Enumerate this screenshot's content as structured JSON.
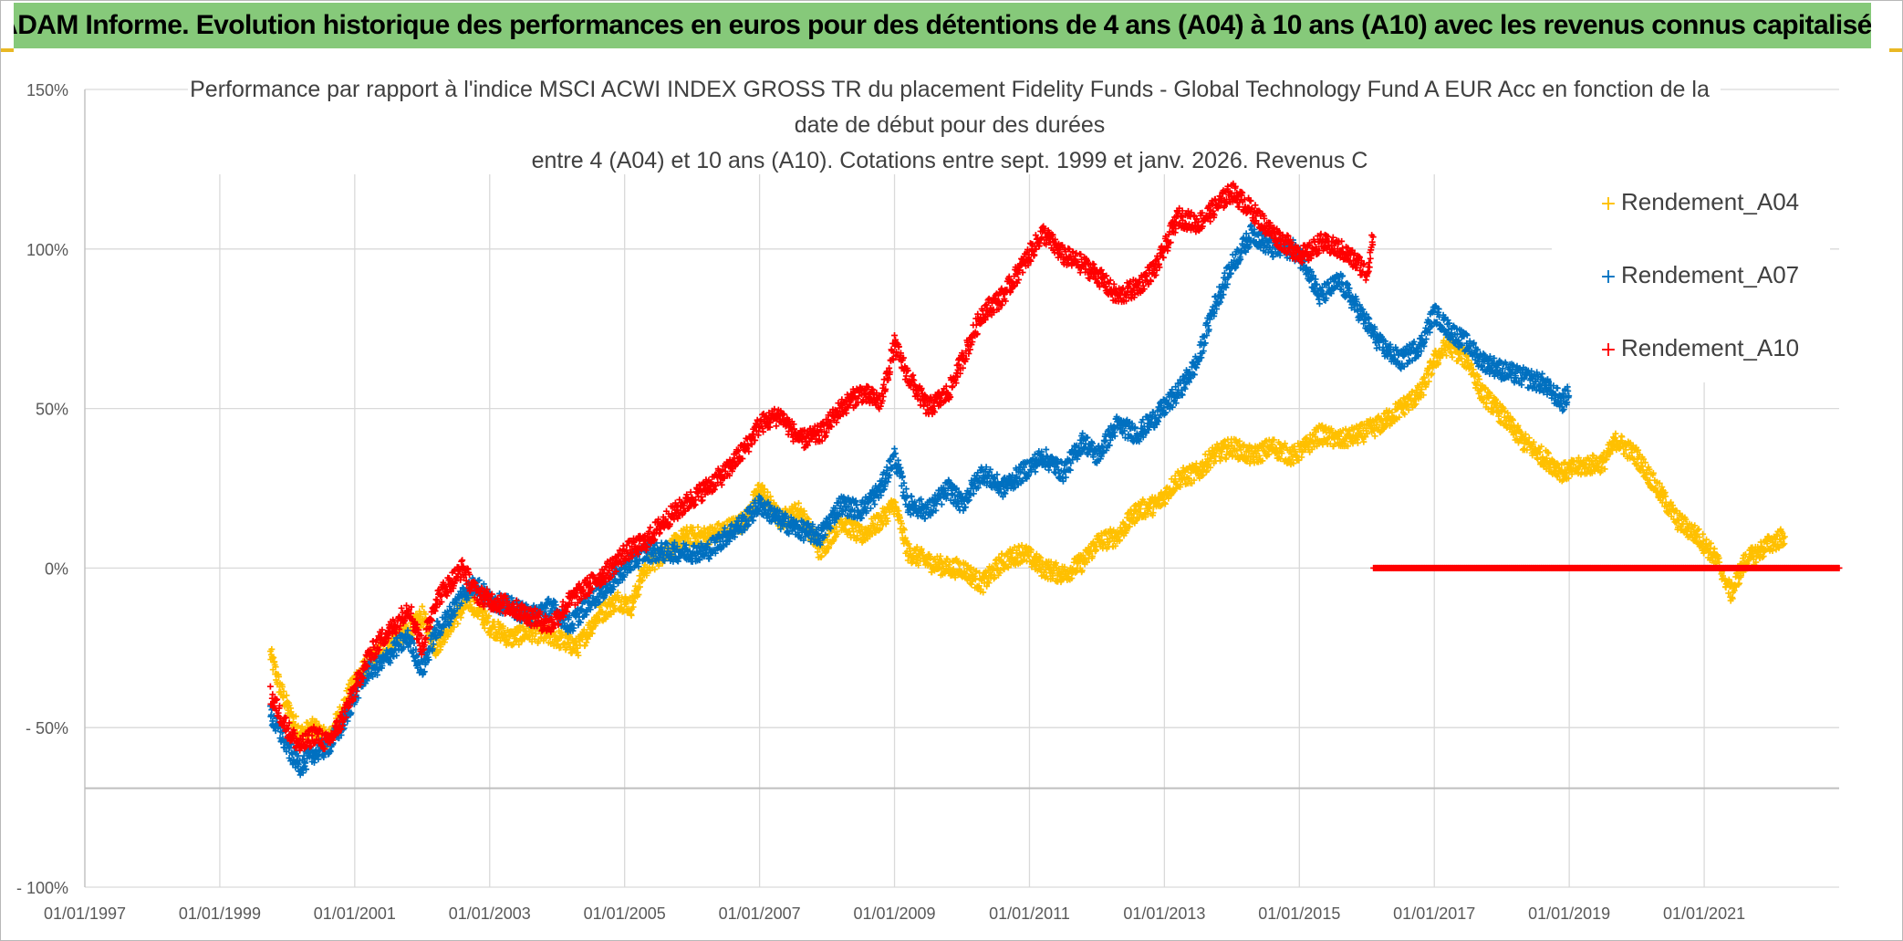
{
  "header": {
    "banner": "ADAM Informe. Evolution historique des performances en euros pour des détentions de 4 ans (A04) à 10 ans (A10) avec les revenus connus capitalisés"
  },
  "chart_data": {
    "type": "scatter",
    "title_lines": [
      "Performance par rapport à l'indice MSCI ACWI INDEX GROSS TR  du placement Fidelity Funds - Global Technology Fund A EUR Acc en fonction de la",
      "date de début pour des durées",
      "entre 4 (A04) et 10 ans (A10). Cotations entre sept. 1999 et janv. 2026. Revenus C"
    ],
    "ylim": [
      -100,
      150
    ],
    "y_ticks": [
      {
        "value": 150,
        "label": "150%"
      },
      {
        "value": 100,
        "label": "100%"
      },
      {
        "value": 50,
        "label": "50%"
      },
      {
        "value": 0,
        "label": "0%"
      },
      {
        "value": -50,
        "label": "- 50%"
      },
      {
        "value": -100,
        "label": "- 100%"
      }
    ],
    "xlim": [
      1997.0,
      2023.0
    ],
    "x_ticks": [
      {
        "value": 1997,
        "label": "01/01/1997"
      },
      {
        "value": 1999,
        "label": "01/01/1999"
      },
      {
        "value": 2001,
        "label": "01/01/2001"
      },
      {
        "value": 2003,
        "label": "01/01/2003"
      },
      {
        "value": 2005,
        "label": "01/01/2005"
      },
      {
        "value": 2007,
        "label": "01/01/2007"
      },
      {
        "value": 2009,
        "label": "01/01/2009"
      },
      {
        "value": 2011,
        "label": "01/01/2011"
      },
      {
        "value": 2013,
        "label": "01/01/2013"
      },
      {
        "value": 2015,
        "label": "01/01/2015"
      },
      {
        "value": 2017,
        "label": "01/01/2017"
      },
      {
        "value": 2019,
        "label": "01/01/2019"
      },
      {
        "value": 2021,
        "label": "01/01/2021"
      }
    ],
    "legend_position": "top-right",
    "series": [
      {
        "name": "Rendement_A04",
        "color": "#FFC000",
        "points": [
          [
            1999.75,
            -27
          ],
          [
            1999.9,
            -38
          ],
          [
            2000.05,
            -46
          ],
          [
            2000.2,
            -52
          ],
          [
            2000.4,
            -50
          ],
          [
            2000.6,
            -54
          ],
          [
            2000.8,
            -45
          ],
          [
            2001.0,
            -35
          ],
          [
            2001.2,
            -30
          ],
          [
            2001.4,
            -25
          ],
          [
            2001.6,
            -22
          ],
          [
            2001.8,
            -20
          ],
          [
            2002.0,
            -15
          ],
          [
            2002.2,
            -25
          ],
          [
            2002.4,
            -18
          ],
          [
            2002.7,
            -10
          ],
          [
            2003.0,
            -18
          ],
          [
            2003.3,
            -22
          ],
          [
            2003.6,
            -20
          ],
          [
            2004.0,
            -22
          ],
          [
            2004.3,
            -25
          ],
          [
            2004.6,
            -15
          ],
          [
            2004.9,
            -10
          ],
          [
            2005.1,
            -12
          ],
          [
            2005.3,
            0
          ],
          [
            2005.6,
            5
          ],
          [
            2005.9,
            10
          ],
          [
            2006.2,
            10
          ],
          [
            2006.5,
            12
          ],
          [
            2006.8,
            15
          ],
          [
            2007.0,
            25
          ],
          [
            2007.3,
            15
          ],
          [
            2007.6,
            18
          ],
          [
            2007.9,
            5
          ],
          [
            2008.2,
            15
          ],
          [
            2008.5,
            10
          ],
          [
            2008.8,
            15
          ],
          [
            2009.0,
            20
          ],
          [
            2009.2,
            5
          ],
          [
            2009.5,
            2
          ],
          [
            2009.8,
            0
          ],
          [
            2010.0,
            0
          ],
          [
            2010.3,
            -5
          ],
          [
            2010.6,
            2
          ],
          [
            2010.9,
            5
          ],
          [
            2011.2,
            0
          ],
          [
            2011.5,
            -2
          ],
          [
            2011.8,
            2
          ],
          [
            2012.0,
            8
          ],
          [
            2012.3,
            10
          ],
          [
            2012.6,
            18
          ],
          [
            2012.9,
            20
          ],
          [
            2013.2,
            28
          ],
          [
            2013.5,
            30
          ],
          [
            2013.7,
            35
          ],
          [
            2014.0,
            38
          ],
          [
            2014.3,
            35
          ],
          [
            2014.6,
            38
          ],
          [
            2014.9,
            35
          ],
          [
            2015.1,
            38
          ],
          [
            2015.3,
            42
          ],
          [
            2015.6,
            40
          ],
          [
            2015.9,
            42
          ],
          [
            2016.2,
            45
          ],
          [
            2016.5,
            50
          ],
          [
            2016.8,
            55
          ],
          [
            2017.0,
            65
          ],
          [
            2017.2,
            70
          ],
          [
            2017.5,
            65
          ],
          [
            2017.7,
            55
          ],
          [
            2018.0,
            48
          ],
          [
            2018.3,
            40
          ],
          [
            2018.6,
            35
          ],
          [
            2018.9,
            30
          ],
          [
            2019.2,
            32
          ],
          [
            2019.5,
            33
          ],
          [
            2019.7,
            40
          ],
          [
            2020.0,
            35
          ],
          [
            2020.3,
            25
          ],
          [
            2020.6,
            15
          ],
          [
            2020.9,
            10
          ],
          [
            2021.1,
            5
          ],
          [
            2021.25,
            0
          ],
          [
            2021.4,
            -8
          ],
          [
            2021.6,
            2
          ],
          [
            2021.8,
            5
          ],
          [
            2022.0,
            8
          ],
          [
            2022.2,
            10
          ]
        ]
      },
      {
        "name": "Rendement_A07",
        "color": "#0070C0",
        "points": [
          [
            1999.75,
            -46
          ],
          [
            1999.9,
            -52
          ],
          [
            2000.05,
            -58
          ],
          [
            2000.2,
            -62
          ],
          [
            2000.4,
            -58
          ],
          [
            2000.6,
            -56
          ],
          [
            2000.8,
            -50
          ],
          [
            2001.0,
            -40
          ],
          [
            2001.2,
            -32
          ],
          [
            2001.4,
            -30
          ],
          [
            2001.6,
            -25
          ],
          [
            2001.8,
            -22
          ],
          [
            2002.0,
            -32
          ],
          [
            2002.2,
            -20
          ],
          [
            2002.4,
            -15
          ],
          [
            2002.6,
            -8
          ],
          [
            2002.8,
            -5
          ],
          [
            2003.0,
            -10
          ],
          [
            2003.3,
            -12
          ],
          [
            2003.6,
            -15
          ],
          [
            2003.9,
            -12
          ],
          [
            2004.2,
            -18
          ],
          [
            2004.5,
            -10
          ],
          [
            2004.8,
            -5
          ],
          [
            2005.0,
            0
          ],
          [
            2005.3,
            5
          ],
          [
            2005.6,
            5
          ],
          [
            2005.9,
            5
          ],
          [
            2006.2,
            5
          ],
          [
            2006.5,
            10
          ],
          [
            2006.8,
            15
          ],
          [
            2007.0,
            20
          ],
          [
            2007.3,
            15
          ],
          [
            2007.6,
            12
          ],
          [
            2007.9,
            10
          ],
          [
            2008.2,
            20
          ],
          [
            2008.5,
            18
          ],
          [
            2008.8,
            25
          ],
          [
            2009.0,
            35
          ],
          [
            2009.2,
            20
          ],
          [
            2009.5,
            18
          ],
          [
            2009.8,
            25
          ],
          [
            2010.0,
            20
          ],
          [
            2010.3,
            30
          ],
          [
            2010.6,
            25
          ],
          [
            2010.9,
            30
          ],
          [
            2011.2,
            35
          ],
          [
            2011.5,
            30
          ],
          [
            2011.8,
            40
          ],
          [
            2012.0,
            35
          ],
          [
            2012.3,
            45
          ],
          [
            2012.6,
            42
          ],
          [
            2012.9,
            48
          ],
          [
            2013.2,
            55
          ],
          [
            2013.5,
            65
          ],
          [
            2013.7,
            80
          ],
          [
            2014.0,
            95
          ],
          [
            2014.3,
            105
          ],
          [
            2014.6,
            100
          ],
          [
            2014.9,
            100
          ],
          [
            2015.1,
            95
          ],
          [
            2015.3,
            85
          ],
          [
            2015.6,
            90
          ],
          [
            2015.9,
            80
          ],
          [
            2016.2,
            70
          ],
          [
            2016.5,
            65
          ],
          [
            2016.8,
            70
          ],
          [
            2017.0,
            80
          ],
          [
            2017.2,
            75
          ],
          [
            2017.5,
            70
          ],
          [
            2017.7,
            65
          ],
          [
            2018.0,
            62
          ],
          [
            2018.3,
            60
          ],
          [
            2018.6,
            58
          ],
          [
            2018.9,
            52
          ],
          [
            2019.0,
            55
          ]
        ]
      },
      {
        "name": "Rendement_A10",
        "color": "#FF0000",
        "points": [
          [
            1999.75,
            -40
          ],
          [
            1999.9,
            -46
          ],
          [
            2000.05,
            -52
          ],
          [
            2000.2,
            -56
          ],
          [
            2000.4,
            -52
          ],
          [
            2000.6,
            -55
          ],
          [
            2000.8,
            -48
          ],
          [
            2001.0,
            -38
          ],
          [
            2001.2,
            -28
          ],
          [
            2001.4,
            -22
          ],
          [
            2001.6,
            -18
          ],
          [
            2001.8,
            -12
          ],
          [
            2002.0,
            -25
          ],
          [
            2002.2,
            -10
          ],
          [
            2002.4,
            -5
          ],
          [
            2002.6,
            0
          ],
          [
            2002.8,
            -8
          ],
          [
            2003.0,
            -10
          ],
          [
            2003.3,
            -12
          ],
          [
            2003.6,
            -15
          ],
          [
            2003.9,
            -18
          ],
          [
            2004.2,
            -10
          ],
          [
            2004.5,
            -5
          ],
          [
            2004.8,
            0
          ],
          [
            2005.0,
            5
          ],
          [
            2005.3,
            8
          ],
          [
            2005.6,
            15
          ],
          [
            2005.9,
            20
          ],
          [
            2006.2,
            25
          ],
          [
            2006.5,
            30
          ],
          [
            2006.8,
            38
          ],
          [
            2007.0,
            45
          ],
          [
            2007.3,
            48
          ],
          [
            2007.6,
            40
          ],
          [
            2007.9,
            42
          ],
          [
            2008.2,
            50
          ],
          [
            2008.5,
            55
          ],
          [
            2008.8,
            52
          ],
          [
            2009.0,
            70
          ],
          [
            2009.2,
            60
          ],
          [
            2009.5,
            50
          ],
          [
            2009.8,
            55
          ],
          [
            2010.0,
            65
          ],
          [
            2010.3,
            80
          ],
          [
            2010.6,
            85
          ],
          [
            2010.9,
            95
          ],
          [
            2011.2,
            105
          ],
          [
            2011.5,
            98
          ],
          [
            2011.8,
            95
          ],
          [
            2012.0,
            92
          ],
          [
            2012.3,
            85
          ],
          [
            2012.6,
            88
          ],
          [
            2012.9,
            95
          ],
          [
            2013.2,
            110
          ],
          [
            2013.5,
            108
          ],
          [
            2013.7,
            112
          ],
          [
            2014.0,
            118
          ],
          [
            2014.3,
            112
          ],
          [
            2014.6,
            105
          ],
          [
            2014.9,
            100
          ],
          [
            2015.1,
            98
          ],
          [
            2015.3,
            102
          ],
          [
            2015.6,
            100
          ],
          [
            2015.9,
            95
          ],
          [
            2016.0,
            92
          ],
          [
            2016.1,
            105
          ]
        ],
        "zero_segment": {
          "x": [
            2016.1,
            2023.0
          ],
          "y": 0
        }
      }
    ]
  }
}
